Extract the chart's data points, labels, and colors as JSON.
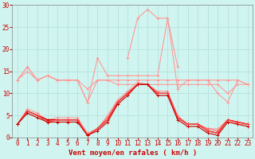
{
  "x": [
    0,
    1,
    2,
    3,
    4,
    5,
    6,
    7,
    8,
    9,
    10,
    11,
    12,
    13,
    14,
    15,
    16,
    17,
    18,
    19,
    20,
    21,
    22,
    23
  ],
  "series": [
    {
      "name": "rafales_light",
      "color": "#ff9999",
      "linewidth": 0.8,
      "marker": "+",
      "markersize": 3,
      "markeredgewidth": 0.7,
      "values": [
        13,
        16,
        13,
        14,
        13,
        13,
        13,
        8,
        18,
        14,
        14,
        14,
        14,
        14,
        14,
        27,
        11,
        13,
        13,
        13,
        10,
        8,
        13,
        12
      ]
    },
    {
      "name": "rafales_peak",
      "color": "#ff9999",
      "linewidth": 0.8,
      "marker": "+",
      "markersize": 3,
      "markeredgewidth": 0.7,
      "values": [
        null,
        null,
        null,
        null,
        null,
        null,
        null,
        null,
        null,
        null,
        null,
        18,
        27,
        29,
        27,
        27,
        16,
        null,
        null,
        null,
        null,
        null,
        null,
        null
      ]
    },
    {
      "name": "upper_band",
      "color": "#ff9999",
      "linewidth": 0.8,
      "marker": "+",
      "markersize": 3,
      "markeredgewidth": 0.7,
      "values": [
        13,
        16,
        13,
        14,
        13,
        13,
        13,
        8,
        13,
        13,
        13,
        13,
        13,
        13,
        13,
        13,
        13,
        13,
        13,
        13,
        13,
        13,
        13,
        12
      ]
    },
    {
      "name": "mid_band1",
      "color": "#ff9999",
      "linewidth": 0.8,
      "marker": "+",
      "markersize": 3,
      "markeredgewidth": 0.7,
      "values": [
        13,
        15,
        13,
        14,
        13,
        13,
        13,
        11,
        13,
        13,
        12,
        12,
        12,
        12,
        12,
        12,
        12,
        12,
        12,
        12,
        12,
        10,
        12,
        12
      ]
    },
    {
      "name": "vent_moyen_high",
      "color": "#ff9999",
      "linewidth": 0.8,
      "marker": "+",
      "markersize": 3,
      "markeredgewidth": 0.7,
      "values": [
        3,
        6.5,
        5.5,
        4,
        4.5,
        4.5,
        4.5,
        1,
        2,
        5,
        8.5,
        10.5,
        12.5,
        12,
        10.5,
        10.5,
        5,
        3,
        3,
        2,
        2,
        4,
        3,
        3
      ]
    },
    {
      "name": "vent_moyen_mid1",
      "color": "#ff6666",
      "linewidth": 0.8,
      "marker": "+",
      "markersize": 3,
      "markeredgewidth": 0.7,
      "values": [
        3,
        6,
        5,
        4,
        4,
        4,
        4,
        0.5,
        2,
        4.5,
        8,
        10,
        12,
        12,
        10,
        10,
        4.5,
        3,
        3,
        2,
        1.5,
        4,
        3.5,
        3
      ]
    },
    {
      "name": "vent_moyen_mid2",
      "color": "#cc0000",
      "linewidth": 1.0,
      "marker": "+",
      "markersize": 3,
      "markeredgewidth": 0.7,
      "values": [
        3,
        6,
        5,
        4,
        4,
        4,
        4,
        0.5,
        2,
        4,
        8,
        10,
        12,
        12,
        10,
        10,
        4.5,
        3,
        3,
        1.5,
        1,
        4,
        3.5,
        3
      ]
    },
    {
      "name": "vent_moyen_low1",
      "color": "#ff4444",
      "linewidth": 0.8,
      "marker": "+",
      "markersize": 3,
      "markeredgewidth": 0.7,
      "values": [
        3,
        6,
        5,
        3.5,
        4,
        4,
        4,
        0.5,
        2,
        4,
        8,
        10,
        12,
        12,
        10,
        10,
        4.5,
        3,
        3,
        1.5,
        1,
        4,
        3.5,
        3
      ]
    },
    {
      "name": "vent_moyen_low2",
      "color": "#cc0000",
      "linewidth": 0.8,
      "marker": "+",
      "markersize": 3,
      "markeredgewidth": 0.7,
      "values": [
        3,
        5.5,
        4.5,
        3.5,
        3.5,
        3.5,
        3.5,
        0.5,
        1.5,
        3.5,
        7.5,
        9.5,
        12,
        12,
        9.5,
        9.5,
        4,
        2.5,
        2.5,
        1,
        0.5,
        3.5,
        3,
        2.5
      ]
    }
  ],
  "background_color": "#d0f5f0",
  "grid_color": "#b0ddd8",
  "xlabel": "Vent moyen/en rafales ( km/h )",
  "xlabel_color": "#cc0000",
  "xlabel_fontsize": 6.5,
  "tick_color": "#cc0000",
  "tick_fontsize": 5.5,
  "ytick_fontsize": 5.5,
  "ylim": [
    0,
    30
  ],
  "yticks": [
    0,
    5,
    10,
    15,
    20,
    25,
    30
  ],
  "xlim": [
    -0.5,
    23.5
  ],
  "figsize": [
    3.2,
    2.0
  ],
  "dpi": 100
}
